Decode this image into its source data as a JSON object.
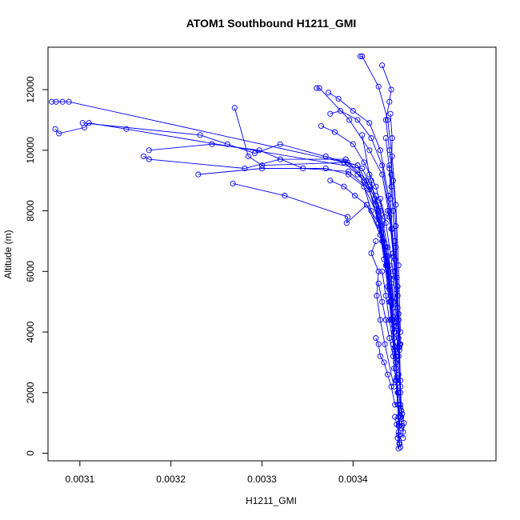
{
  "chart_data": {
    "type": "scatter",
    "title": "ATOM1 Southbound H1211_GMI",
    "xlabel": "H1211_GMI",
    "ylabel": "Altitude (m)",
    "xlim": [
      0.003065,
      0.003557
    ],
    "ylim": [
      -250,
      13400
    ],
    "x_ticks": [
      0.0031,
      0.0032,
      0.0033,
      0.0034
    ],
    "x_tick_labels": [
      "0.0031",
      "0.0032",
      "0.0033",
      "0.0034"
    ],
    "y_ticks": [
      0,
      2000,
      4000,
      6000,
      8000,
      10000,
      12000
    ],
    "y_tick_labels": [
      "0",
      "2000",
      "4000",
      "6000",
      "8000",
      "10000",
      "12000"
    ],
    "series_color": "#0000ff",
    "marker": "open-circle",
    "connected": true,
    "series": [
      {
        "x": [
          0.003069,
          0.003074,
          0.003081,
          0.003088,
          0.003405,
          0.00342,
          0.003432,
          0.00344,
          0.003445,
          0.003448,
          0.00345,
          0.003451
        ],
        "y": [
          11600,
          11600,
          11600,
          11600,
          9500,
          8000,
          7000,
          5500,
          4000,
          2500,
          1200,
          300
        ]
      },
      {
        "x": [
          0.003073,
          0.003077,
          0.003105,
          0.00311,
          0.003151,
          0.00341,
          0.003425,
          0.003435,
          0.003442,
          0.003447,
          0.00345
        ],
        "y": [
          10700,
          10550,
          10750,
          10900,
          10700,
          9400,
          8500,
          6800,
          5000,
          3000,
          900
        ]
      },
      {
        "x": [
          0.003103,
          0.003232,
          0.003262,
          0.003292,
          0.00332,
          0.003405,
          0.003428,
          0.003438,
          0.003444,
          0.003449
        ],
        "y": [
          10900,
          10500,
          10200,
          9900,
          10200,
          9500,
          8200,
          6500,
          4500,
          2000
        ]
      },
      {
        "x": [
          0.003176,
          0.003245,
          0.003297,
          0.003345,
          0.003395,
          0.003418,
          0.003433,
          0.003441,
          0.003447,
          0.003451
        ],
        "y": [
          10000,
          10200,
          10000,
          9400,
          9300,
          8700,
          7000,
          5200,
          3200,
          1000
        ]
      },
      {
        "x": [
          0.00317,
          0.003176,
          0.003281,
          0.00332,
          0.003392,
          0.003415,
          0.00343,
          0.00344,
          0.003446
        ],
        "y": [
          9800,
          9700,
          9400,
          9700,
          9700,
          9000,
          7500,
          5500,
          3500
        ]
      },
      {
        "x": [
          0.00323,
          0.0033,
          0.00337,
          0.003395,
          0.003412,
          0.003428,
          0.003439,
          0.003446
        ],
        "y": [
          9200,
          9400,
          9400,
          9200,
          8800,
          7800,
          6000,
          4000
        ]
      },
      {
        "x": [
          0.00327,
          0.003285,
          0.0033,
          0.003394,
          0.003412,
          0.003428,
          0.003438,
          0.003445
        ],
        "y": [
          11400,
          9800,
          9500,
          9600,
          9000,
          8000,
          6200,
          4200
        ]
      },
      {
        "x": [
          0.003268,
          0.003325,
          0.003394,
          0.003393,
          0.003415,
          0.00343,
          0.00344
        ],
        "y": [
          8900,
          8500,
          7800,
          7600,
          8200,
          7200,
          5800
        ]
      },
      {
        "x": [
          0.00336,
          0.003363,
          0.003396,
          0.003418,
          0.003432,
          0.00344,
          0.003446,
          0.00345,
          0.003452
        ],
        "y": [
          12050,
          12050,
          11000,
          10000,
          9200,
          7800,
          6000,
          3800,
          1600
        ]
      },
      {
        "x": [
          0.003408,
          0.00341,
          0.003428,
          0.003438,
          0.003443,
          0.003447,
          0.00345,
          0.003452
        ],
        "y": [
          13100,
          13100,
          12100,
          11000,
          9800,
          8200,
          6200,
          4000
        ]
      },
      {
        "x": [
          0.003432,
          0.003442,
          0.00344,
          0.003436,
          0.00344,
          0.003444,
          0.003447,
          0.003449,
          0.003451,
          0.003452
        ],
        "y": [
          12800,
          12000,
          11600,
          11000,
          10000,
          9000,
          7500,
          5500,
          3500,
          1500
        ]
      },
      {
        "x": [
          0.003375,
          0.003386,
          0.003405,
          0.00342,
          0.003432,
          0.00344,
          0.003446,
          0.00345
        ],
        "y": [
          11200,
          11300,
          11000,
          10400,
          9500,
          8000,
          6000,
          3500
        ]
      },
      {
        "x": [
          0.003373,
          0.003384,
          0.0034,
          0.003418,
          0.00343,
          0.003439,
          0.003445
        ],
        "y": [
          11900,
          11700,
          11300,
          10900,
          10000,
          8500,
          6500
        ]
      },
      {
        "x": [
          0.003365,
          0.00338,
          0.0034,
          0.003412,
          0.003425,
          0.003436,
          0.003444,
          0.003448
        ],
        "y": [
          10800,
          10600,
          10200,
          9600,
          8800,
          7600,
          6000,
          4200
        ]
      },
      {
        "x": [
          0.00337,
          0.00339,
          0.003405,
          0.003418,
          0.00343,
          0.003438,
          0.003445
        ],
        "y": [
          9800,
          9600,
          9200,
          8800,
          8000,
          6800,
          5000
        ]
      },
      {
        "x": [
          0.003375,
          0.00339,
          0.003402,
          0.003415,
          0.003428,
          0.003437,
          0.003444
        ],
        "y": [
          9000,
          8800,
          8500,
          8200,
          7600,
          6500,
          4800
        ]
      },
      {
        "x": [
          0.00341,
          0.003418,
          0.003424,
          0.00343,
          0.003436,
          0.003441,
          0.003446
        ],
        "y": [
          10500,
          9200,
          8400,
          7400,
          6200,
          5000,
          3500
        ]
      },
      {
        "x": [
          0.00342,
          0.003425,
          0.00343,
          0.003434,
          0.003438,
          0.003442,
          0.003447
        ],
        "y": [
          9000,
          8200,
          7200,
          6400,
          5500,
          4400,
          3000
        ]
      },
      {
        "x": [
          0.003425,
          0.00342,
          0.003428,
          0.003426,
          0.00343,
          0.003435,
          0.003445
        ],
        "y": [
          7000,
          6600,
          6000,
          5200,
          4400,
          3600,
          2200
        ]
      },
      {
        "x": [
          0.003425,
          0.003428,
          0.00343,
          0.003434,
          0.003438,
          0.003442,
          0.003446
        ],
        "y": [
          3800,
          3600,
          3200,
          3000,
          2600,
          2200,
          1600
        ]
      },
      {
        "x": [
          0.003436,
          0.00344,
          0.003441,
          0.003443,
          0.003446,
          0.003448,
          0.00345,
          0.003451
        ],
        "y": [
          10400,
          9400,
          8400,
          7400,
          6400,
          5400,
          4400,
          3400
        ]
      },
      {
        "x": [
          0.003441,
          0.003443,
          0.003442,
          0.003444,
          0.003447,
          0.003449,
          0.003452
        ],
        "y": [
          11200,
          10400,
          9200,
          8000,
          6800,
          5200,
          3600
        ]
      },
      {
        "x": [
          0.00343,
          0.003435,
          0.003433,
          0.003437,
          0.00344,
          0.003444,
          0.003446
        ],
        "y": [
          8400,
          7800,
          7000,
          6200,
          5400,
          4400,
          3400
        ]
      },
      {
        "x": [
          0.003436,
          0.00344,
          0.003442,
          0.003444,
          0.003447,
          0.00345,
          0.003452,
          0.003453
        ],
        "y": [
          6800,
          6200,
          5600,
          5000,
          4200,
          3200,
          2200,
          1200
        ]
      },
      {
        "x": [
          0.003438,
          0.003442,
          0.003444,
          0.003446,
          0.003449,
          0.003451,
          0.003452,
          0.003453
        ],
        "y": [
          8000,
          7400,
          6600,
          5800,
          4800,
          3600,
          2400,
          1400
        ]
      },
      {
        "x": [
          0.00344,
          0.003442,
          0.003444,
          0.003446,
          0.003448,
          0.00345,
          0.003451
        ],
        "y": [
          9500,
          8800,
          8000,
          7000,
          5800,
          4600,
          3600
        ]
      },
      {
        "x": [
          0.00344,
          0.003443,
          0.003445,
          0.003448,
          0.00345,
          0.003452,
          0.003453,
          0.003454,
          0.003455
        ],
        "y": [
          5000,
          4400,
          3800,
          3200,
          2600,
          2000,
          1400,
          900,
          500
        ]
      },
      {
        "x": [
          0.003445,
          0.003448,
          0.00345,
          0.003452,
          0.003454,
          0.003456,
          0.003455
        ],
        "y": [
          2800,
          2400,
          2000,
          1600,
          1300,
          1000,
          700
        ]
      },
      {
        "x": [
          0.00345,
          0.003452,
          0.003451,
          0.00345,
          0.003451,
          0.003452
        ],
        "y": [
          1600,
          1200,
          900,
          600,
          350,
          200
        ]
      },
      {
        "x": [
          0.003446,
          0.003448,
          0.00345,
          0.003449,
          0.003451,
          0.00345
        ],
        "y": [
          1200,
          950,
          700,
          500,
          300,
          150
        ]
      },
      {
        "x": [
          0.003432,
          0.003436,
          0.00344,
          0.003444,
          0.003447,
          0.003449
        ],
        "y": [
          6000,
          5200,
          4400,
          3600,
          2800,
          2000
        ]
      },
      {
        "x": [
          0.003428,
          0.003432,
          0.003436,
          0.00344,
          0.003444,
          0.003447,
          0.003449
        ],
        "y": [
          5600,
          5000,
          4400,
          3800,
          3200,
          2400,
          1600
        ]
      }
    ]
  }
}
